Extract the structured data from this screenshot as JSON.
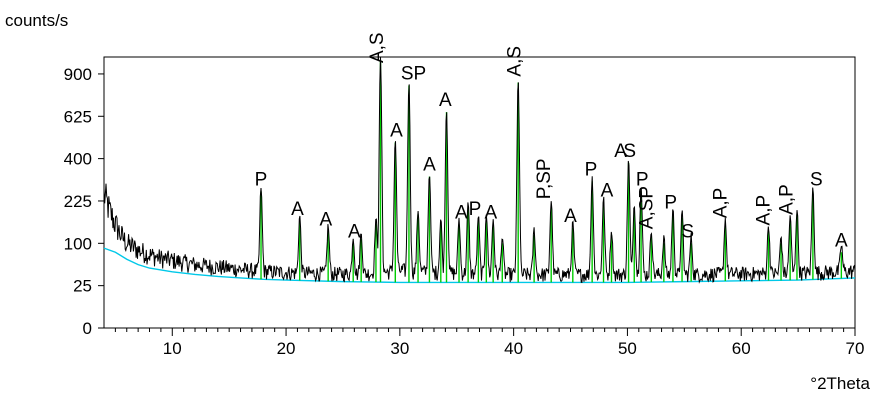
{
  "chart_data": {
    "type": "line",
    "title": "",
    "ylabel": "counts/s",
    "xlabel": "°2Theta",
    "xlim": [
      4,
      70
    ],
    "y_scale": "sqrt",
    "ylim": [
      0,
      1024
    ],
    "grid": false,
    "x_ticks": [
      10,
      20,
      30,
      40,
      50,
      60,
      70
    ],
    "y_ticks": [
      0,
      25,
      100,
      225,
      400,
      625,
      900
    ],
    "colors": {
      "pattern": "#000000",
      "background": "#00c8e8",
      "reference": "#00cc00"
    },
    "series": [
      {
        "x": [
          4.0,
          4.5,
          5.0,
          5.5,
          6.0,
          7.0,
          8.0,
          9.0,
          10.0,
          11.0,
          12.0,
          13.0,
          14.0,
          15.0,
          16.0,
          17.0,
          18.0,
          19.0,
          20.0,
          22.0,
          24.0,
          26.0,
          28.0,
          30.0,
          32.0,
          35.0,
          40.0,
          45.0,
          50.0,
          55.0,
          60.0,
          65.0,
          70.0
        ],
        "values": [
          250,
          190,
          150,
          120,
          100,
          85,
          75,
          68,
          64,
          60,
          56,
          54,
          52,
          50,
          48,
          46,
          45,
          44,
          43,
          42,
          41,
          41,
          42,
          46,
          44,
          42,
          40,
          40,
          40,
          40,
          41,
          42,
          45
        ]
      },
      {
        "x": [
          4.0,
          5.0,
          6.0,
          7.0,
          8.0,
          10.0,
          12.0,
          14.0,
          16.0,
          18.0,
          20.0,
          25.0,
          30.0,
          35.0,
          40.0,
          45.0,
          50.0,
          55.0,
          60.0,
          65.0,
          70.0
        ],
        "values": [
          89,
          80,
          66,
          56,
          50,
          44,
          40,
          37,
          35,
          33,
          32,
          30,
          29,
          29,
          29,
          29,
          29,
          30,
          31,
          32,
          35
        ]
      },
      {
        "x": [
          17.8,
          21.2,
          23.7,
          25.9,
          26.6,
          27.9,
          28.3,
          29.6,
          30.8,
          31.6,
          32.6,
          33.6,
          34.1,
          35.2,
          36.0,
          36.9,
          37.6,
          38.2,
          39.0,
          40.4,
          41.8,
          43.3,
          45.2,
          46.9,
          47.9,
          48.6,
          50.1,
          50.6,
          51.2,
          52.1,
          53.2,
          54.0,
          54.8,
          55.6,
          58.6,
          62.4,
          63.5,
          64.3,
          64.9,
          66.3,
          68.8
        ],
        "values": [
          260,
          160,
          130,
          100,
          110,
          150,
          1000,
          480,
          820,
          180,
          320,
          150,
          650,
          150,
          200,
          160,
          170,
          150,
          100,
          840,
          120,
          210,
          140,
          300,
          220,
          120,
          380,
          200,
          260,
          120,
          100,
          180,
          170,
          100,
          150,
          130,
          100,
          160,
          180,
          260,
          80
        ]
      }
    ],
    "annotations": [
      {
        "x": 17.8,
        "text": "P"
      },
      {
        "x": 21.0,
        "text": "A"
      },
      {
        "x": 23.5,
        "text": "A"
      },
      {
        "x": 26.0,
        "text": "A"
      },
      {
        "x": 28.5,
        "text": "A,S"
      },
      {
        "x": 29.7,
        "text": "A"
      },
      {
        "x": 31.2,
        "text": "SP"
      },
      {
        "x": 34.0,
        "text": "A"
      },
      {
        "x": 32.6,
        "text": "A"
      },
      {
        "x": 35.4,
        "text": "A"
      },
      {
        "x": 36.6,
        "text": "P"
      },
      {
        "x": 38.0,
        "text": "A"
      },
      {
        "x": 40.6,
        "text": "A,S"
      },
      {
        "x": 43.2,
        "text": "P,SP"
      },
      {
        "x": 45.0,
        "text": "A"
      },
      {
        "x": 46.8,
        "text": "P"
      },
      {
        "x": 48.2,
        "text": "A"
      },
      {
        "x": 50.2,
        "text": "S"
      },
      {
        "x": 49.4,
        "text": "A"
      },
      {
        "x": 51.3,
        "text": "P"
      },
      {
        "x": 52.2,
        "text": "A,SP"
      },
      {
        "x": 53.8,
        "text": "P"
      },
      {
        "x": 55.3,
        "text": "S"
      },
      {
        "x": 58.7,
        "text": "A,P"
      },
      {
        "x": 62.5,
        "text": "A,P"
      },
      {
        "x": 64.5,
        "text": "A,P"
      },
      {
        "x": 66.6,
        "text": "S"
      },
      {
        "x": 68.8,
        "text": "A"
      }
    ]
  }
}
